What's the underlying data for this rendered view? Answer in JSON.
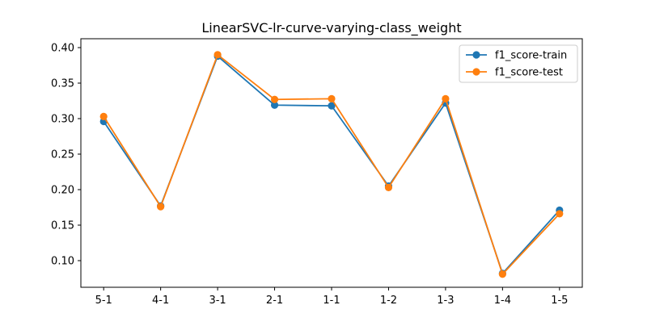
{
  "chart_data": {
    "type": "line",
    "title": "LinearSVC-lr-curve-varying-class_weight",
    "xlabel": "",
    "ylabel": "",
    "categories": [
      "5-1",
      "4-1",
      "3-1",
      "2-1",
      "1-1",
      "1-2",
      "1-3",
      "1-4",
      "1-5"
    ],
    "ylim": [
      0.0625,
      0.4125
    ],
    "yticks": [
      "0.10",
      "0.15",
      "0.20",
      "0.25",
      "0.30",
      "0.35",
      "0.40"
    ],
    "ytick_values": [
      0.1,
      0.15,
      0.2,
      0.25,
      0.3,
      0.35,
      0.4
    ],
    "grid": false,
    "legend_position": "top-right",
    "series": [
      {
        "name": "f1_score-train",
        "color": "#1f77b4",
        "values": [
          0.296,
          0.177,
          0.388,
          0.319,
          0.318,
          0.205,
          0.322,
          0.082,
          0.171
        ]
      },
      {
        "name": "f1_score-test",
        "color": "#ff7f0e",
        "values": [
          0.303,
          0.176,
          0.39,
          0.327,
          0.328,
          0.203,
          0.328,
          0.081,
          0.166
        ]
      }
    ]
  }
}
